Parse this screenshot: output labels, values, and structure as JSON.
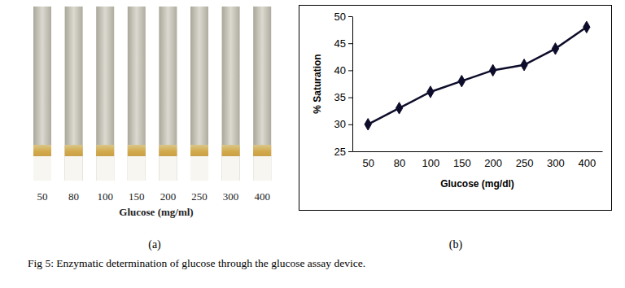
{
  "chart_data": {
    "type": "line",
    "xlabel": "Glucose (mg/dl)",
    "ylabel": "% Saturation",
    "categories": [
      "50",
      "80",
      "100",
      "150",
      "200",
      "250",
      "300",
      "400"
    ],
    "values": [
      30,
      33,
      36,
      38,
      40,
      41,
      44,
      48
    ],
    "color": "#0d0d2b",
    "marker": "diamond",
    "line_style": "solid",
    "ylim": [
      25,
      50
    ],
    "yticks": [
      25,
      30,
      35,
      40,
      45,
      50
    ],
    "grid": false
  },
  "panel_a": {
    "tube_labels": [
      "50",
      "80",
      "100",
      "150",
      "200",
      "250",
      "300",
      "400"
    ],
    "xlabel": "Glucose (mg/ml)"
  },
  "panel_labels": [
    "(a)",
    "(b)"
  ],
  "caption": "Fig 5: Enzymatic determination of glucose through the glucose assay device."
}
